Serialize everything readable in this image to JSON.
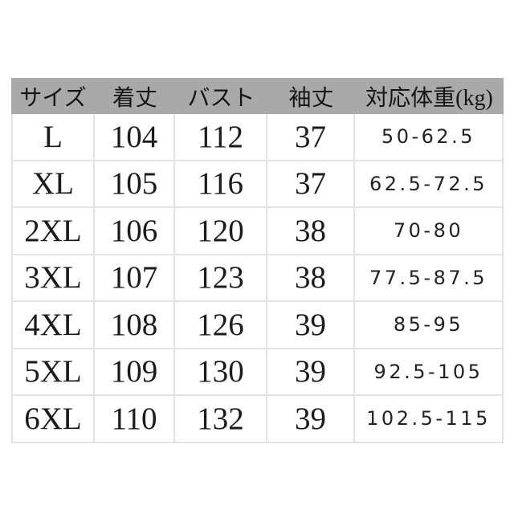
{
  "colors": {
    "header-bg": "#a9a9a9",
    "line": "#e2e2e2",
    "ink": "#1b1b1b",
    "page-bg": "#ffffff"
  },
  "chart_data": {
    "type": "table",
    "title": "",
    "columns": [
      "サイズ",
      "着丈",
      "バスト",
      "袖丈",
      "対応体重(kg)"
    ],
    "rows": [
      [
        "L",
        "104",
        "112",
        "37",
        "50-62.5"
      ],
      [
        "XL",
        "105",
        "116",
        "37",
        "62.5-72.5"
      ],
      [
        "2XL",
        "106",
        "120",
        "38",
        "70-80"
      ],
      [
        "3XL",
        "107",
        "123",
        "38",
        "77.5-87.5"
      ],
      [
        "4XL",
        "108",
        "126",
        "39",
        "85-95"
      ],
      [
        "5XL",
        "109",
        "130",
        "39",
        "92.5-105"
      ],
      [
        "6XL",
        "110",
        "132",
        "39",
        "102.5-115"
      ]
    ]
  }
}
